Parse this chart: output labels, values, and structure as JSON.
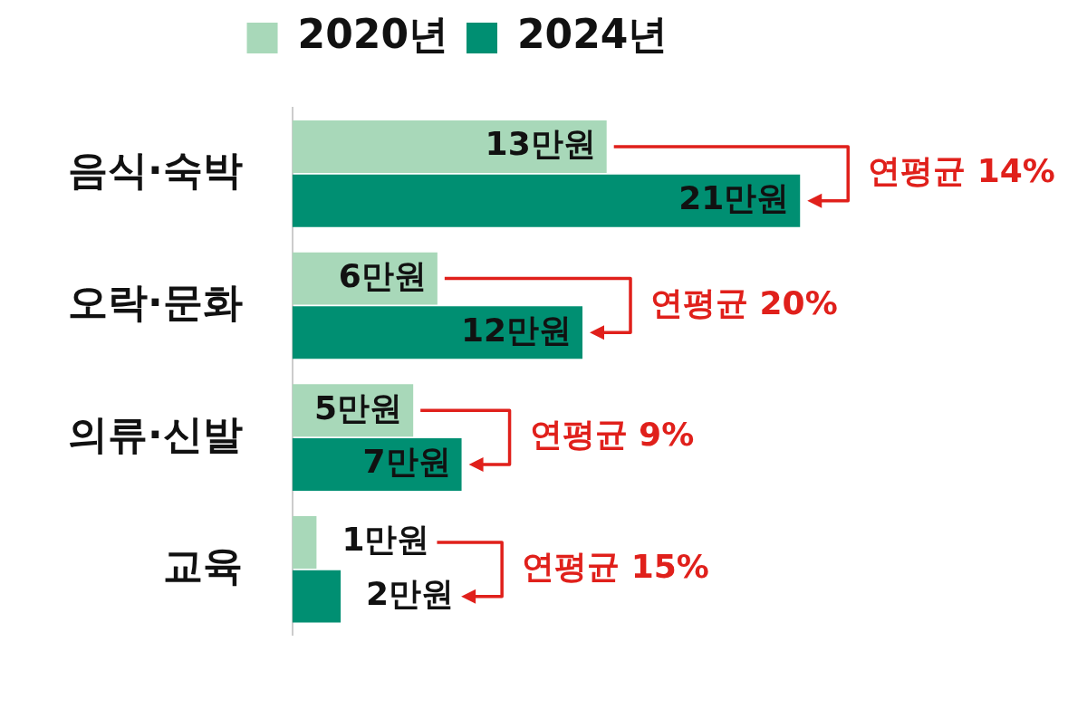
{
  "chart_data": {
    "type": "bar",
    "orientation": "horizontal",
    "categories": [
      "음식·숙박",
      "오락·문화",
      "의류·신발",
      "교육"
    ],
    "series": [
      {
        "name": "2020년",
        "color": "#a8d8b9",
        "values": [
          13,
          6,
          5,
          1
        ],
        "value_labels": [
          "13만원",
          "6만원",
          "5만원",
          "1만원"
        ]
      },
      {
        "name": "2024년",
        "color": "#008f72",
        "values": [
          21,
          12,
          7,
          2
        ],
        "value_labels": [
          "21만원",
          "12만원",
          "7만원",
          "2만원"
        ]
      }
    ],
    "annotations": [
      "연평균 14%",
      "연평균 20%",
      "연평균 9%",
      "연평균 15%"
    ],
    "legend": "top",
    "tick_labels": "y"
  }
}
